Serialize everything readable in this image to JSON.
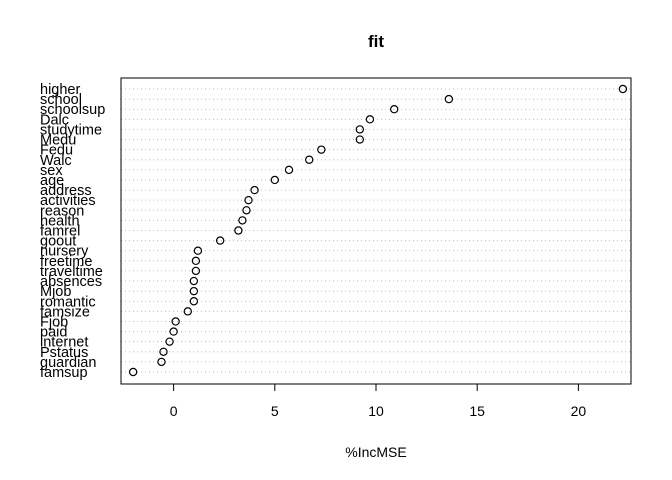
{
  "chart_data": {
    "type": "scatter",
    "subtype": "dotchart",
    "title": "fit",
    "xlabel": "%IncMSE",
    "ylabel": "",
    "xlim": [
      -2.6,
      22.6
    ],
    "xticks": [
      0,
      5,
      10,
      15,
      20
    ],
    "grid": "dotted horizontal guide lines",
    "variables": [
      {
        "name": "higher",
        "value": 22.2
      },
      {
        "name": "school",
        "value": 13.6
      },
      {
        "name": "schoolsup",
        "value": 10.9
      },
      {
        "name": "Dalc",
        "value": 9.7
      },
      {
        "name": "studytime",
        "value": 9.2
      },
      {
        "name": "Medu",
        "value": 9.2
      },
      {
        "name": "Fedu",
        "value": 7.3
      },
      {
        "name": "Walc",
        "value": 6.7
      },
      {
        "name": "sex",
        "value": 5.7
      },
      {
        "name": "age",
        "value": 5.0
      },
      {
        "name": "address",
        "value": 4.0
      },
      {
        "name": "activities",
        "value": 3.7
      },
      {
        "name": "reason",
        "value": 3.6
      },
      {
        "name": "health",
        "value": 3.4
      },
      {
        "name": "famrel",
        "value": 3.2
      },
      {
        "name": "goout",
        "value": 2.3
      },
      {
        "name": "nursery",
        "value": 1.2
      },
      {
        "name": "freetime",
        "value": 1.1
      },
      {
        "name": "traveltime",
        "value": 1.1
      },
      {
        "name": "absences",
        "value": 1.0
      },
      {
        "name": "Mjob",
        "value": 1.0
      },
      {
        "name": "romantic",
        "value": 1.0
      },
      {
        "name": "famsize",
        "value": 0.7
      },
      {
        "name": "Fjob",
        "value": 0.1
      },
      {
        "name": "paid",
        "value": 0.0
      },
      {
        "name": "internet",
        "value": -0.2
      },
      {
        "name": "Pstatus",
        "value": -0.5
      },
      {
        "name": "guardian",
        "value": -0.6
      },
      {
        "name": "famsup",
        "value": -2.0
      }
    ]
  }
}
